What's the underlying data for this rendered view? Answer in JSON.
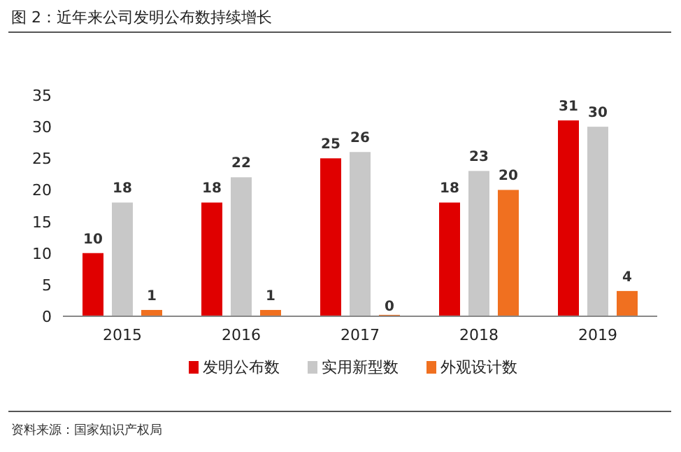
{
  "chart_data": {
    "type": "bar",
    "title": "图 2：近年来公司发明公布数持续增长",
    "categories": [
      "2015",
      "2016",
      "2017",
      "2018",
      "2019"
    ],
    "series": [
      {
        "name": "发明公布数",
        "color": "#e00000",
        "values": [
          10,
          18,
          25,
          18,
          31
        ]
      },
      {
        "name": "实用新型数",
        "color": "#c8c8c8",
        "values": [
          18,
          22,
          26,
          23,
          30
        ]
      },
      {
        "name": "外观设计数",
        "color": "#f07020",
        "values": [
          1,
          1,
          0,
          20,
          4
        ]
      }
    ],
    "ylim": [
      0,
      35
    ],
    "yticks": [
      0,
      5,
      10,
      15,
      20,
      25,
      30,
      35
    ],
    "data_labels": true,
    "legend": "bottom",
    "annotations": [
      "资料来源：国家知识产权局"
    ]
  }
}
